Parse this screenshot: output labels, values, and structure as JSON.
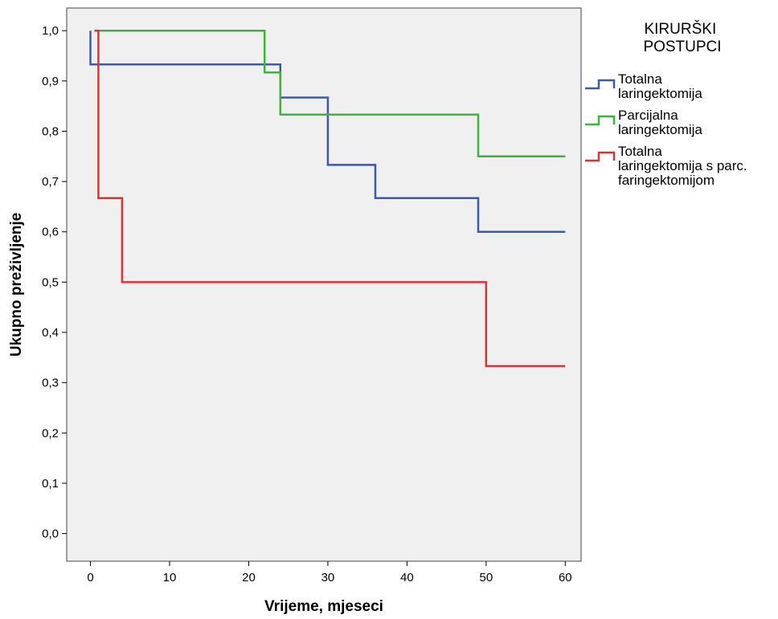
{
  "chart_data": {
    "type": "line",
    "step": true,
    "xlabel": "Vrijeme, mjeseci",
    "ylabel": "Ukupno preživljenje",
    "xlim": [
      -3,
      62
    ],
    "ylim": [
      -0.055,
      1.045
    ],
    "xticks": [
      0,
      10,
      20,
      30,
      40,
      50,
      60
    ],
    "xtick_labels": [
      "0",
      "10",
      "20",
      "30",
      "40",
      "50",
      "60"
    ],
    "yticks": [
      0,
      0.1,
      0.2,
      0.3,
      0.4,
      0.5,
      0.6,
      0.7,
      0.8,
      0.9,
      1.0
    ],
    "ytick_labels": [
      "0,0",
      "0,1",
      "0,2",
      "0,3",
      "0,4",
      "0,5",
      "0,6",
      "0,7",
      "0,8",
      "0,9",
      "1,0"
    ],
    "grid": false,
    "plot_background": "#f0f0f0",
    "legend_position": "right",
    "legend_title_lines": [
      "KIRURŠKI",
      "POSTUPCI"
    ],
    "series": [
      {
        "name_lines": [
          "Totalna",
          "laringektomija"
        ],
        "color": "#3c5aaa",
        "x": [
          0,
          0,
          24,
          24,
          30,
          30,
          36,
          36,
          49,
          49,
          60
        ],
        "y": [
          1.0,
          0.933,
          0.933,
          0.867,
          0.867,
          0.733,
          0.733,
          0.667,
          0.667,
          0.6,
          0.6
        ]
      },
      {
        "name_lines": [
          "Parcijalna",
          "laringektomija"
        ],
        "color": "#3cb43c",
        "x": [
          1,
          22,
          22,
          24,
          24,
          49,
          49,
          60
        ],
        "y": [
          1.0,
          1.0,
          0.917,
          0.917,
          0.833,
          0.833,
          0.75,
          0.75
        ]
      },
      {
        "name_lines": [
          "Totalna",
          "laringektomija s parc.",
          "faringektomijom"
        ],
        "color": "#e03232",
        "x": [
          0.5,
          1,
          1,
          4,
          4,
          50,
          50,
          60
        ],
        "y": [
          1.0,
          1.0,
          0.667,
          0.667,
          0.5,
          0.5,
          0.333,
          0.333
        ]
      }
    ]
  }
}
